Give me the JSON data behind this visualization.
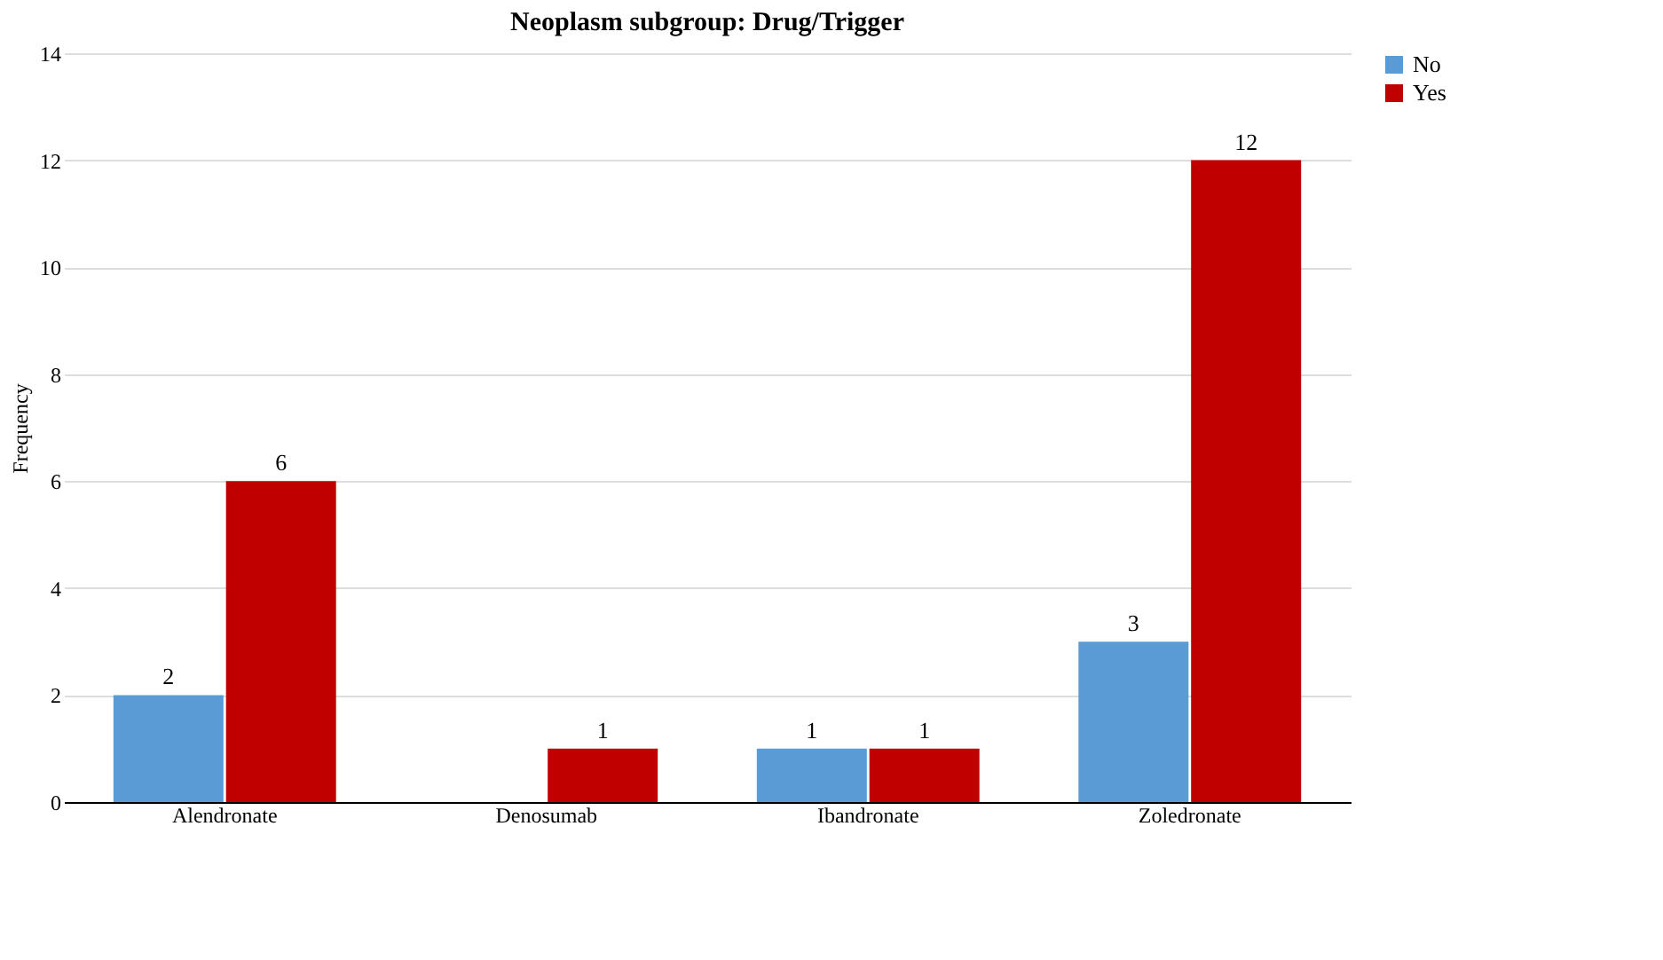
{
  "chart_data": {
    "type": "bar",
    "title": "Neoplasm subgroup: Drug/Trigger",
    "ylabel": "Frequency",
    "categories": [
      "Alendronate",
      "Denosumab",
      "Ibandronate",
      "Zoledronate"
    ],
    "series": [
      {
        "name": "No",
        "color": "#5b9bd5",
        "values": [
          2,
          null,
          1,
          3
        ]
      },
      {
        "name": "Yes",
        "color": "#c00000",
        "values": [
          6,
          1,
          1,
          12
        ]
      }
    ],
    "ylim": [
      0,
      14
    ],
    "yticks": [
      0,
      2,
      4,
      6,
      8,
      10,
      12,
      14
    ],
    "grid": "y",
    "legend": "right",
    "data_labels": true
  }
}
